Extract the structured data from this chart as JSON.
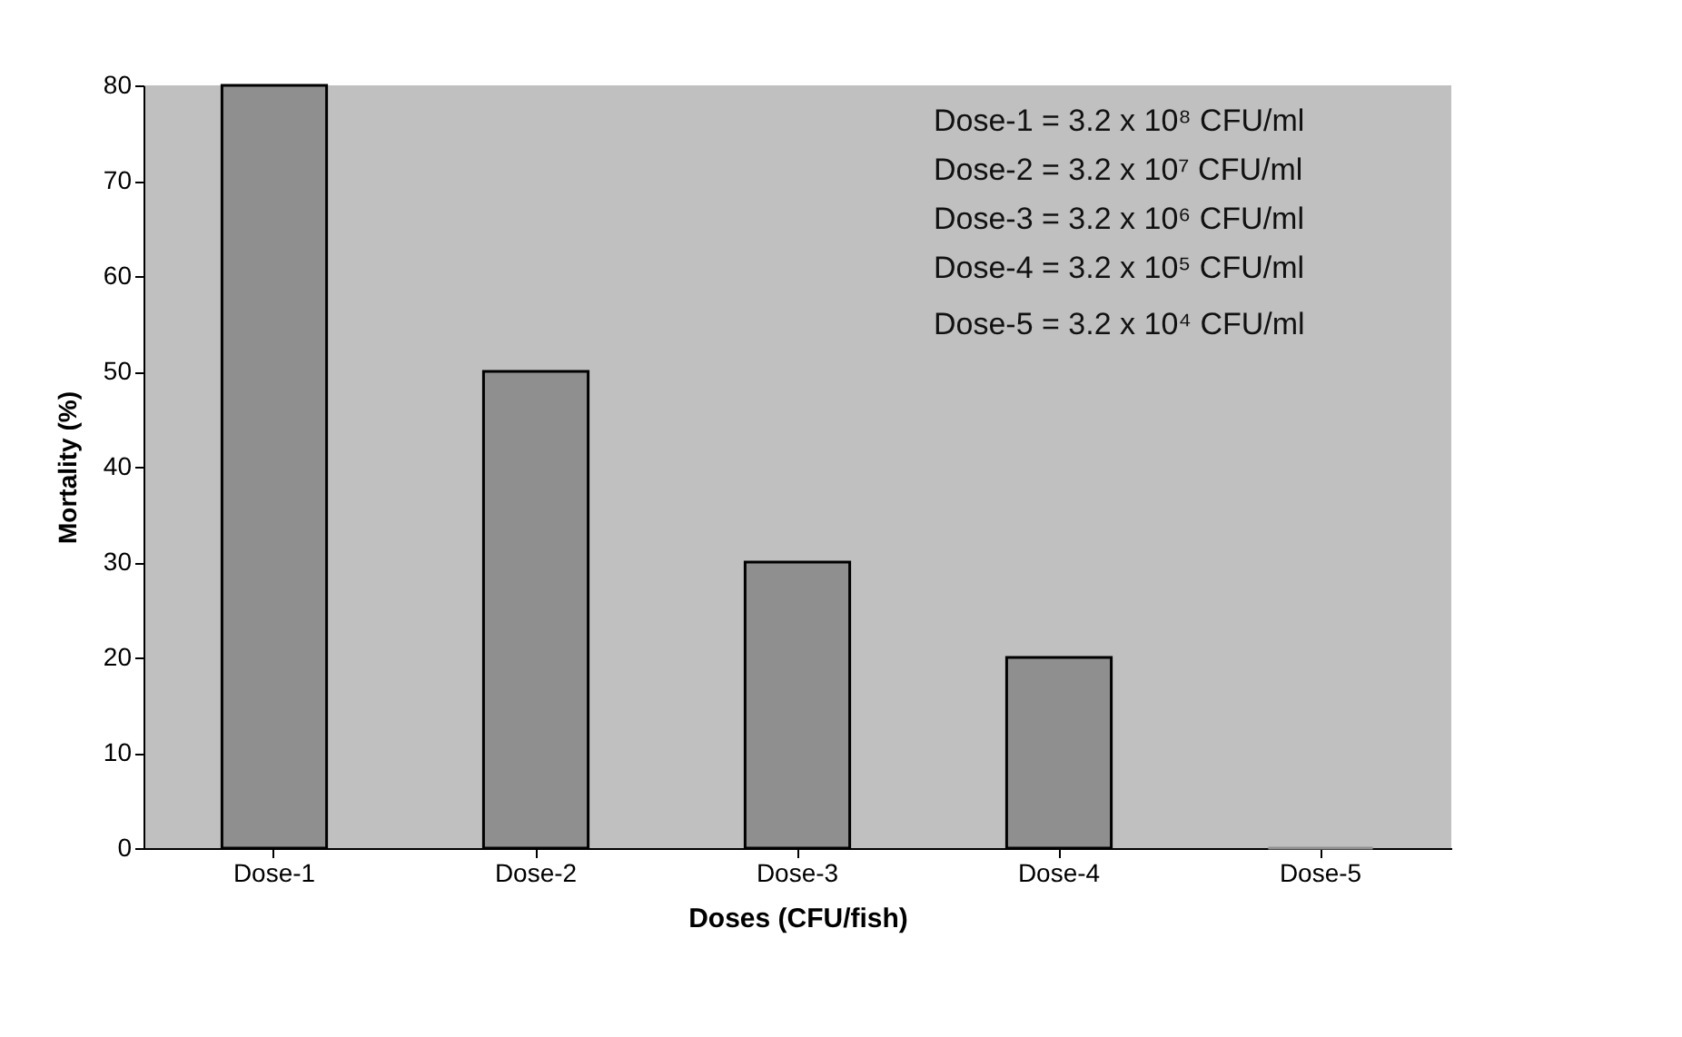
{
  "chart_data": {
    "type": "bar",
    "categories": [
      "Dose-1",
      "Dose-2",
      "Dose-3",
      "Dose-4",
      "Dose-5"
    ],
    "values": [
      80,
      50,
      30,
      20,
      0
    ],
    "color": "#8f8f8f",
    "ylim": [
      0,
      80
    ],
    "yticks": [
      0,
      10,
      20,
      30,
      40,
      50,
      60,
      70,
      80
    ],
    "xlabel": "Doses (CFU/fish)",
    "ylabel": "Mortality (%)",
    "annotations": [
      "Dose-1 = 3.2 x 10⁸ CFU/ml",
      "Dose-2 = 3.2 x 10⁷ CFU/ml",
      "Dose-3 = 3.2 x 10⁶ CFU/ml",
      "Dose-4 = 3.2 x 10⁵ CFU/ml",
      "Dose-5 = 3.2 x 10⁴ CFU/ml"
    ],
    "grid": false
  }
}
